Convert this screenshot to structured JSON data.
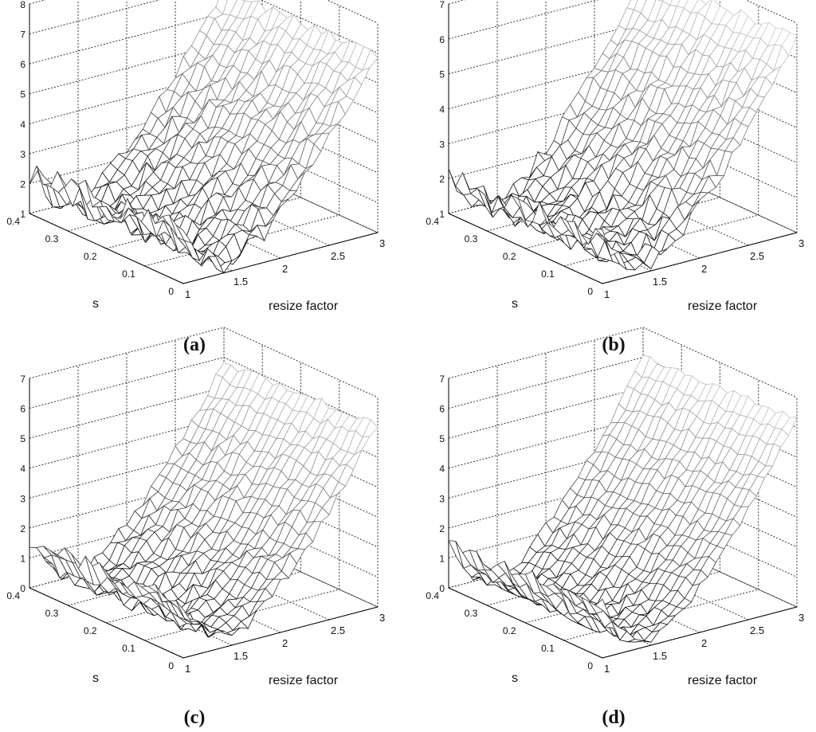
{
  "chart_data": [
    {
      "panel": "(a)",
      "type": "surface3d",
      "xlabel": "resize factor",
      "ylabel": "s",
      "zlabel": "",
      "x_ticks": [
        "1",
        "1.5",
        "2",
        "2.5",
        "3"
      ],
      "y_ticks": [
        "0",
        "0.1",
        "0.2",
        "0.3",
        "0.4"
      ],
      "z_ticks": [
        "1",
        "2",
        "3",
        "4",
        "5",
        "6",
        "7",
        "8"
      ],
      "xlim": [
        1,
        3
      ],
      "ylim": [
        0,
        0.4
      ],
      "zlim": [
        1,
        8
      ],
      "grid": true,
      "surface": {
        "min_resize": 1.5,
        "z_min": 1.3,
        "z_at_resize_1": 2.8,
        "z_at_resize_3": 7.0,
        "s_tilt": -0.4,
        "noise": 0.45,
        "ridge_s": 0.4
      }
    },
    {
      "panel": "(b)",
      "type": "surface3d",
      "xlabel": "resize factor",
      "ylabel": "s",
      "zlabel": "",
      "x_ticks": [
        "1",
        "1.5",
        "2",
        "2.5",
        "3"
      ],
      "y_ticks": [
        "0",
        "0.1",
        "0.2",
        "0.3",
        "0.4"
      ],
      "z_ticks": [
        "1",
        "2",
        "3",
        "4",
        "5",
        "6",
        "7"
      ],
      "xlim": [
        1,
        3
      ],
      "ylim": [
        0,
        0.4
      ],
      "zlim": [
        1,
        7
      ],
      "grid": true,
      "surface": {
        "min_resize": 1.5,
        "z_min": 1.2,
        "z_at_resize_1": 2.3,
        "z_at_resize_3": 6.6,
        "s_tilt": -0.3,
        "noise": 0.35,
        "ridge_s": 0.4
      }
    },
    {
      "panel": "(c)",
      "type": "surface3d",
      "xlabel": "resize factor",
      "ylabel": "s",
      "zlabel": "",
      "x_ticks": [
        "1",
        "1.5",
        "2",
        "2.5",
        "3"
      ],
      "y_ticks": [
        "0",
        "0.1",
        "0.2",
        "0.3",
        "0.4"
      ],
      "z_ticks": [
        "0",
        "1",
        "2",
        "3",
        "4",
        "5",
        "6",
        "7"
      ],
      "xlim": [
        1,
        3
      ],
      "ylim": [
        0,
        0.4
      ],
      "zlim": [
        0,
        7
      ],
      "grid": true,
      "surface": {
        "min_resize": 1.5,
        "z_min": 0.3,
        "z_at_resize_1": 1.9,
        "z_at_resize_3": 6.1,
        "s_tilt": -0.4,
        "noise": 0.3,
        "ridge_s": 0.4
      }
    },
    {
      "panel": "(d)",
      "type": "surface3d",
      "xlabel": "resize factor",
      "ylabel": "s",
      "zlabel": "",
      "x_ticks": [
        "1",
        "1.5",
        "2",
        "2.5",
        "3"
      ],
      "y_ticks": [
        "0",
        "0.1",
        "0.2",
        "0.3",
        "0.4"
      ],
      "z_ticks": [
        "0",
        "1",
        "2",
        "3",
        "4",
        "5",
        "6",
        "7"
      ],
      "xlim": [
        1,
        3
      ],
      "ylim": [
        0,
        0.4
      ],
      "zlim": [
        0,
        7
      ],
      "grid": true,
      "surface": {
        "min_resize": 1.5,
        "z_min": 0.1,
        "z_at_resize_1": 1.8,
        "z_at_resize_3": 6.3,
        "s_tilt": -0.4,
        "noise": 0.25,
        "ridge_s": 0.4
      }
    }
  ],
  "colors": {
    "axis": "#000000",
    "grid": "#333333",
    "mesh_low": "#000000",
    "mesh_high": "#dddddd",
    "face": "#ffffff"
  }
}
